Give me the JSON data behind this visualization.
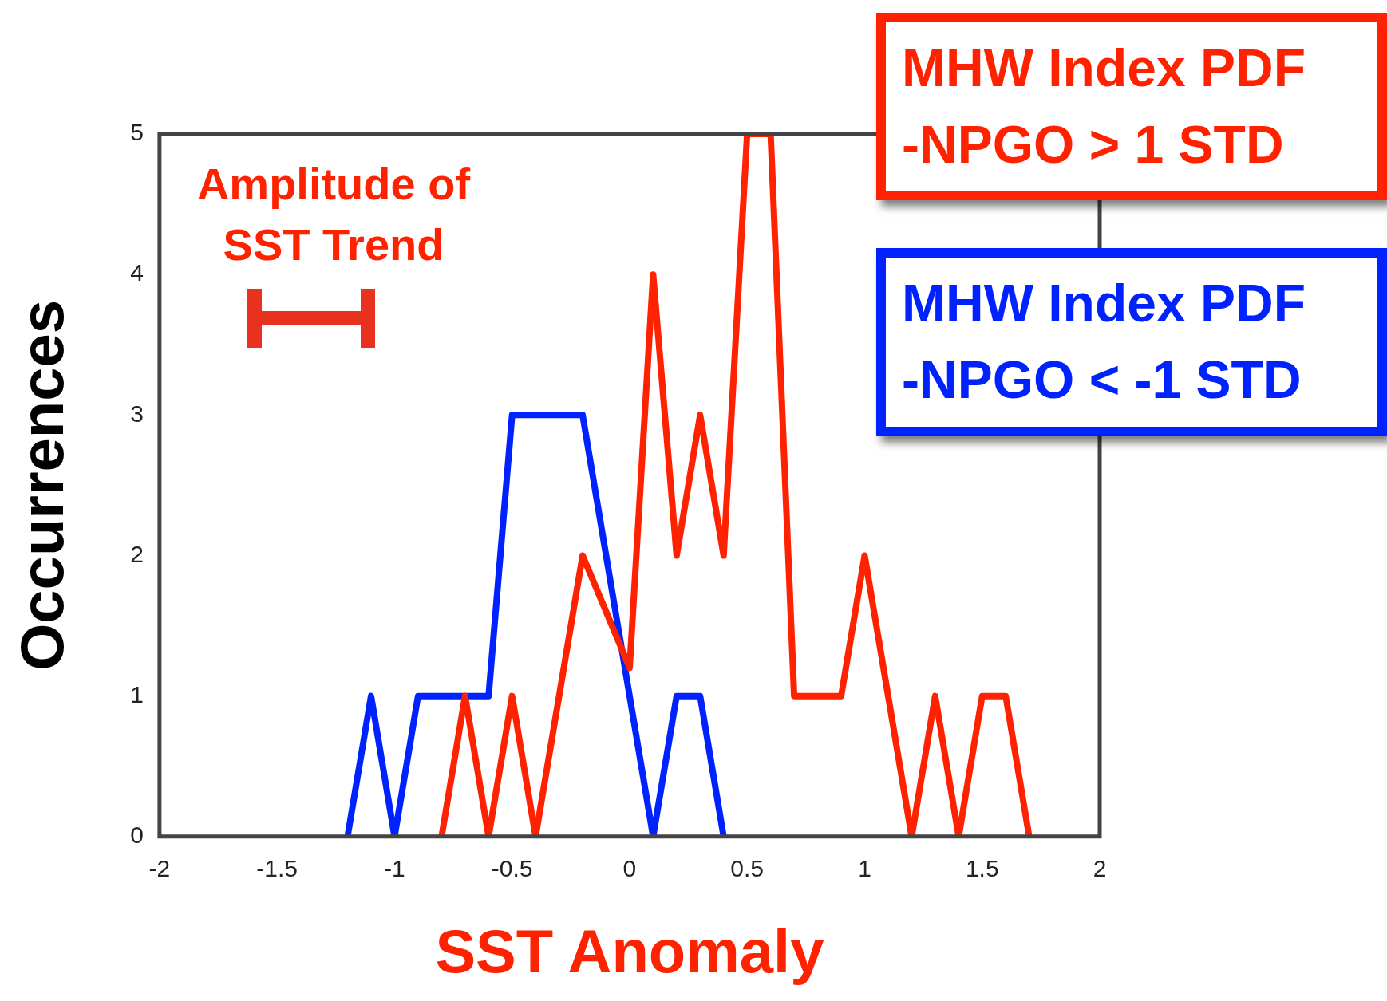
{
  "chart_data": {
    "type": "line",
    "xlabel": "SST Anomaly",
    "ylabel": "Occurrences",
    "xlim": [
      -2,
      2
    ],
    "xticks": [
      -2,
      -1.5,
      -1,
      -0.5,
      0,
      0.5,
      1,
      1.5,
      2
    ],
    "ylim": [
      0,
      5
    ],
    "yticks": [
      0,
      1,
      2,
      3,
      4,
      5
    ],
    "grid": false,
    "legend": "top right",
    "marker": "none",
    "line_style": "solid",
    "annotations": [
      "Amplitude of SST Trend"
    ],
    "series": [
      {
        "name": "MHW Index PDF\n-NPGO > 1 STD",
        "color": "#ff2200",
        "x": [
          -0.8,
          -0.7,
          -0.6,
          -0.5,
          -0.4,
          -0.2,
          0,
          0.1,
          0.2,
          0.3,
          0.4,
          0.5,
          0.6,
          0.7,
          0.9,
          1,
          1.2,
          1.3,
          1.4,
          1.5,
          1.6,
          1.7
        ],
        "values": [
          0,
          1,
          0,
          1,
          0,
          2,
          1.2,
          4,
          2,
          3,
          2,
          5,
          5,
          1,
          1,
          2,
          0,
          1,
          0,
          1,
          1,
          0
        ]
      },
      {
        "name": "MHW Index PDF\n-NPGO < -1 STD",
        "color": "#0022ff",
        "x": [
          -1.2,
          -1.1,
          -1,
          -0.9,
          -0.6,
          -0.5,
          -0.2,
          0.1,
          0.2,
          0.3,
          0.4
        ],
        "values": [
          0,
          1,
          0,
          1,
          1,
          3,
          3,
          0,
          1,
          1,
          0
        ]
      }
    ]
  }
}
